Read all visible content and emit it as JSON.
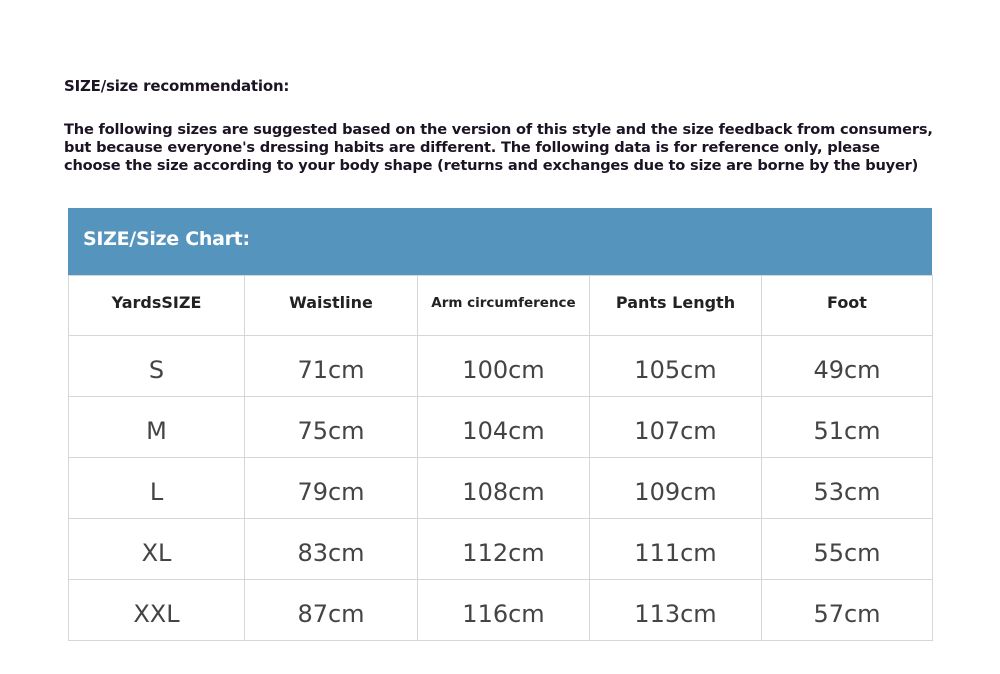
{
  "title": "SIZE/size recommendation:",
  "description": [
    "The following sizes are suggested based on the version of this style and the size feedback from consumers,",
    "but because everyone's dressing habits are different. The following data is for reference only, please",
    "choose the size according to your body shape (returns and exchanges due to size are borne by the buyer)"
  ],
  "accent_color": "#5595bd",
  "chart_data": {
    "type": "table",
    "title": "SIZE/Size Chart:",
    "columns": [
      "YardsSIZE",
      "Waistline",
      "Arm circumference",
      "Pants Length",
      "Foot"
    ],
    "rows": [
      [
        "S",
        "71cm",
        "100cm",
        "105cm",
        "49cm"
      ],
      [
        "M",
        "75cm",
        "104cm",
        "107cm",
        "51cm"
      ],
      [
        "L",
        "79cm",
        "108cm",
        "109cm",
        "53cm"
      ],
      [
        "XL",
        "83cm",
        "112cm",
        "111cm",
        "55cm"
      ],
      [
        "XXL",
        "87cm",
        "116cm",
        "113cm",
        "57cm"
      ]
    ]
  }
}
